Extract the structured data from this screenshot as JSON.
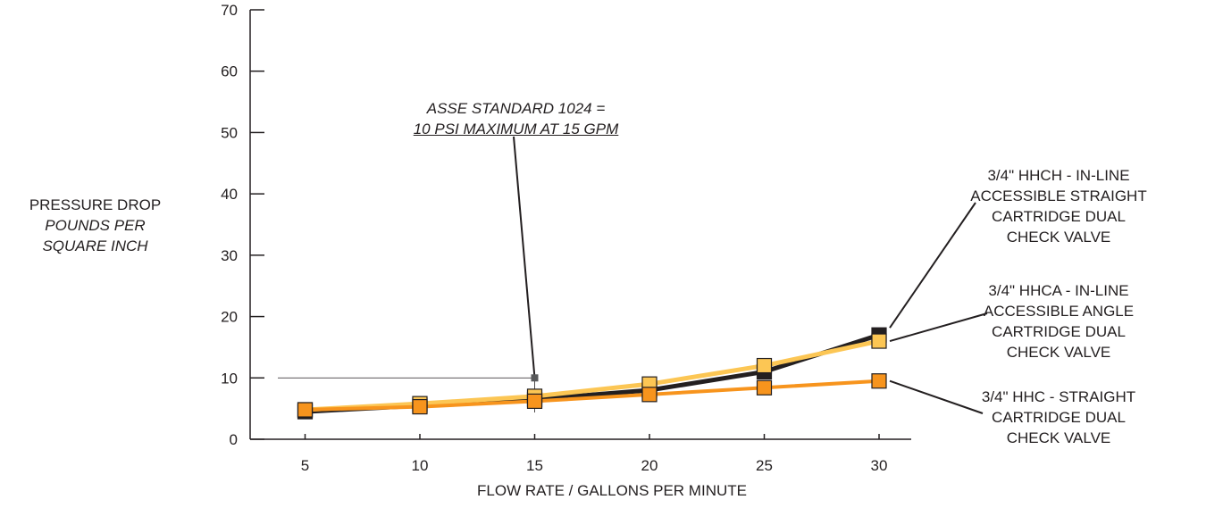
{
  "chart_data": {
    "type": "line",
    "x": [
      5,
      10,
      15,
      20,
      25,
      30
    ],
    "xlabel": "FLOW RATE / GALLONS PER MINUTE",
    "ylabel_lines": [
      "PRESSURE DROP",
      "POUNDS PER",
      "SQUARE INCH"
    ],
    "ylim": [
      0,
      70
    ],
    "yticks": [
      0,
      10,
      20,
      30,
      40,
      50,
      60,
      70
    ],
    "xticks": [
      5,
      10,
      15,
      20,
      25,
      30
    ],
    "grid": false,
    "legend_placement": "right",
    "series": [
      {
        "name_lines": [
          "3/4\" HHCH - IN-LINE",
          "ACCESSIBLE STRAIGHT",
          "CARTRIDGE DUAL",
          "CHECK VALVE"
        ],
        "values": [
          4.5,
          5.5,
          6.5,
          8.0,
          11.0,
          17.0
        ],
        "color": "#231f20"
      },
      {
        "name_lines": [
          "3/4\" HHCA - IN-LINE",
          "ACCESSIBLE ANGLE",
          "CARTRIDGE DUAL",
          "CHECK VALVE"
        ],
        "values": [
          4.8,
          5.8,
          7.0,
          9.0,
          12.0,
          16.0
        ],
        "color": "#fcc654"
      },
      {
        "name_lines": [
          "3/4\" HHC - STRAIGHT",
          "CARTRIDGE DUAL",
          "CHECK VALVE"
        ],
        "values": [
          4.8,
          5.3,
          6.2,
          7.3,
          8.4,
          9.5
        ],
        "color": "#f7941d"
      }
    ],
    "annotation": {
      "lines": [
        "ASSE STANDARD 1024 =",
        "10 PSI MAXIMUM AT 15 GPM"
      ],
      "point": {
        "x": 15,
        "y": 10
      }
    }
  }
}
